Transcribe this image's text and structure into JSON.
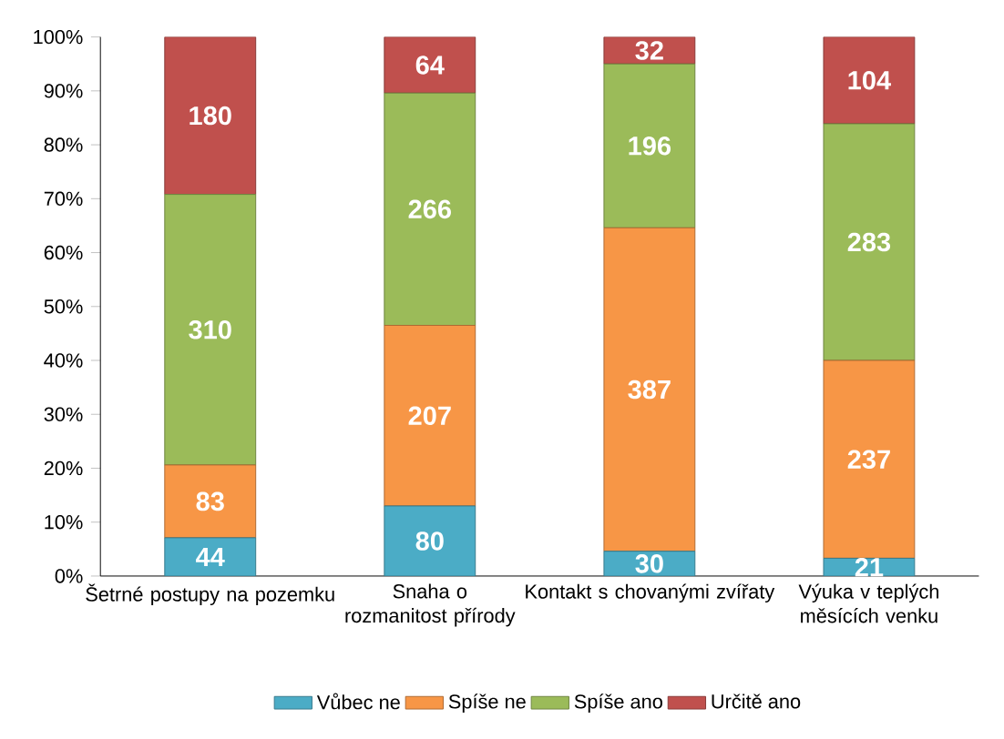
{
  "chart_data": {
    "type": "bar",
    "stacked": true,
    "categories": [
      "Šetrné postupy na pozemku",
      "Snaha o rozmanitost přírody",
      "Kontakt s chovanými zvířaty",
      "Výuka v teplých měsících venku"
    ],
    "series": [
      {
        "name": "Vůbec ne",
        "color": "#4bacc6",
        "values": [
          7.1,
          13.0,
          4.6,
          3.3
        ]
      },
      {
        "name": "Spíše ne",
        "color": "#f79646",
        "values": [
          13.5,
          33.5,
          60.0,
          36.7
        ]
      },
      {
        "name": "Spíše ano",
        "color": "#9bbb59",
        "values": [
          50.2,
          43.1,
          30.4,
          43.9
        ]
      },
      {
        "name": "Určitě ano",
        "color": "#c0504d",
        "values": [
          29.2,
          10.4,
          5.0,
          16.1
        ]
      }
    ],
    "annotations": [
      "44",
      "83",
      "310",
      "180",
      "80",
      "207",
      "266",
      "64",
      "30",
      "387",
      "196",
      "32",
      "21",
      "237",
      "283",
      "104"
    ],
    "ylim": [
      0,
      100
    ],
    "yticks": [
      {
        "value": 0,
        "label": "0%"
      },
      {
        "value": 10,
        "label": "10%"
      },
      {
        "value": 20,
        "label": "20%"
      },
      {
        "value": 30,
        "label": "30%"
      },
      {
        "value": 40,
        "label": "40%"
      },
      {
        "value": 50,
        "label": "50%"
      },
      {
        "value": 60,
        "label": "60%"
      },
      {
        "value": 70,
        "label": "70%"
      },
      {
        "value": 80,
        "label": "80%"
      },
      {
        "value": 90,
        "label": "90%"
      },
      {
        "value": 100,
        "label": "100%"
      }
    ],
    "legend": "bottom"
  }
}
